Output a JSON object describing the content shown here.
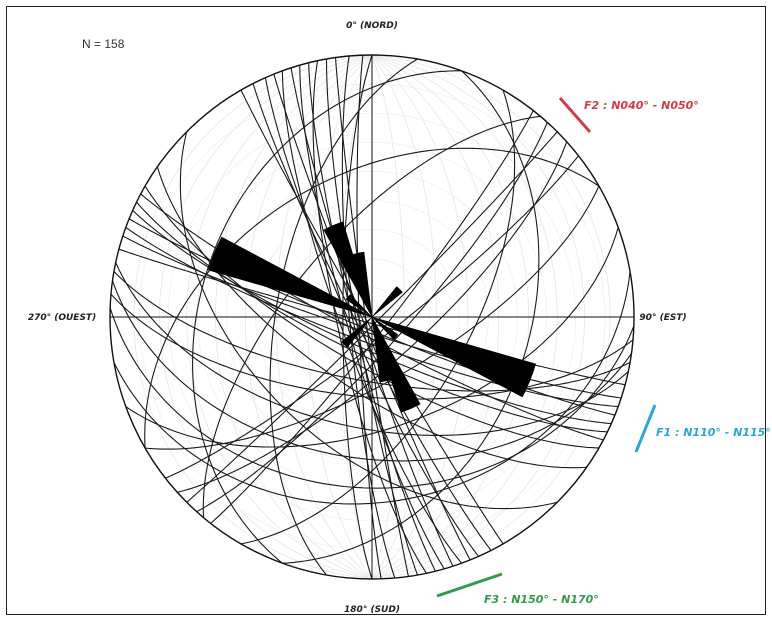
{
  "count_label": "N = 158",
  "directions": {
    "north": "0° (NORD)",
    "east": "90° (EST)",
    "south": "180° (SUD)",
    "west": "270° (OUEST)"
  },
  "families": [
    {
      "label": "F1 : N110° - N115°",
      "color": "#2aa6d6"
    },
    {
      "label": "F2 : N040° - N050°",
      "color": "#d33b47"
    },
    {
      "label": "F3 : N150° - N170°",
      "color": "#2e9a4a"
    }
  ],
  "rose_petals": [
    {
      "azimuth": 112,
      "length": 0.65
    },
    {
      "azimuth": 292,
      "length": 0.65
    },
    {
      "azimuth": 157,
      "length": 0.38
    },
    {
      "azimuth": 337,
      "length": 0.38
    },
    {
      "azimuth": 167,
      "length": 0.25
    },
    {
      "azimuth": 347,
      "length": 0.25
    },
    {
      "azimuth": 45,
      "length": 0.15
    },
    {
      "azimuth": 225,
      "length": 0.15
    },
    {
      "azimuth": 130,
      "length": 0.12
    },
    {
      "azimuth": 310,
      "length": 0.12
    }
  ],
  "great_circles": [
    {
      "strike": 105,
      "dip": 88
    },
    {
      "strike": 108,
      "dip": 85
    },
    {
      "strike": 110,
      "dip": 82
    },
    {
      "strike": 112,
      "dip": 86
    },
    {
      "strike": 114,
      "dip": 80
    },
    {
      "strike": 116,
      "dip": 78
    },
    {
      "strike": 118,
      "dip": 84
    },
    {
      "strike": 120,
      "dip": 75
    },
    {
      "strike": 100,
      "dip": 70
    },
    {
      "strike": 95,
      "dip": 65
    },
    {
      "strike": 102,
      "dip": 55
    },
    {
      "strike": 98,
      "dip": 45
    },
    {
      "strike": 92,
      "dip": 35
    },
    {
      "strike": 125,
      "dip": 68
    },
    {
      "strike": 150,
      "dip": 88
    },
    {
      "strike": 153,
      "dip": 85
    },
    {
      "strike": 156,
      "dip": 83
    },
    {
      "strike": 158,
      "dip": 87
    },
    {
      "strike": 160,
      "dip": 80
    },
    {
      "strike": 162,
      "dip": 86
    },
    {
      "strike": 164,
      "dip": 82
    },
    {
      "strike": 166,
      "dip": 84
    },
    {
      "strike": 168,
      "dip": 79
    },
    {
      "strike": 170,
      "dip": 85
    },
    {
      "strike": 172,
      "dip": 88
    },
    {
      "strike": 175,
      "dip": 83
    },
    {
      "strike": 178,
      "dip": 86
    },
    {
      "strike": 180,
      "dip": 81
    },
    {
      "strike": 38,
      "dip": 85
    },
    {
      "strike": 42,
      "dip": 80
    },
    {
      "strike": 45,
      "dip": 88
    },
    {
      "strike": 48,
      "dip": 75
    },
    {
      "strike": 52,
      "dip": 83
    },
    {
      "strike": 30,
      "dip": 60
    },
    {
      "strike": 60,
      "dip": 70
    },
    {
      "strike": 200,
      "dip": 35
    },
    {
      "strike": 240,
      "dip": 45
    },
    {
      "strike": 20,
      "dip": 40
    },
    {
      "strike": 80,
      "dip": 30
    },
    {
      "strike": 135,
      "dip": 50
    },
    {
      "strike": 190,
      "dip": 60
    },
    {
      "strike": 220,
      "dip": 65
    },
    {
      "strike": 70,
      "dip": 55
    }
  ]
}
